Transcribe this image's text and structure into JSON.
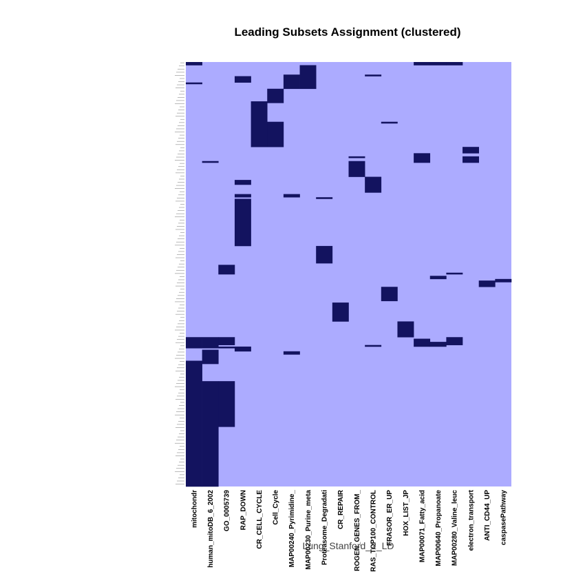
{
  "chart_data": {
    "type": "heatmap",
    "title": "Leading Subsets Assignment (clustered)",
    "xlabel": "Lung_Stanford_2_LD",
    "colors": {
      "background": "#ACABFF",
      "membership": "#13135F"
    },
    "row_count": 270,
    "columns": [
      "mitochondr",
      "human_mitoDB_6_2002",
      "GO_0005739",
      "RAP_DOWN",
      "CR_CELL_CYCLE",
      "Cell_Cycle",
      "MAP00240_Pyrimidine_",
      "MAP00230_Purine_meta",
      "Proteasome_Degradati",
      "CR_REPAIR",
      "ROGEN_GENES_FROM_",
      "RAS_TOP100_CONTROL",
      "FRASOR_ER_UP",
      "HOX_LIST_JP",
      "MAP00071_Fatty_acid",
      "MAP00640_Propanoate",
      "MAP00280_Valine_leuc",
      "electron_transport",
      "ANTI_CD44_UP",
      "caspasePathway"
    ],
    "member_blocks": [
      {
        "col": 0,
        "rows": [
          1,
          2
        ]
      },
      {
        "col": 0,
        "rows": [
          14,
          14
        ]
      },
      {
        "col": 0,
        "rows": [
          176,
          182
        ]
      },
      {
        "col": 0,
        "rows": [
          191,
          270
        ]
      },
      {
        "col": 1,
        "rows": [
          64,
          64
        ]
      },
      {
        "col": 1,
        "rows": [
          176,
          182
        ]
      },
      {
        "col": 1,
        "rows": [
          184,
          192
        ]
      },
      {
        "col": 1,
        "rows": [
          204,
          270
        ]
      },
      {
        "col": 2,
        "rows": [
          130,
          135
        ]
      },
      {
        "col": 2,
        "rows": [
          176,
          180
        ]
      },
      {
        "col": 2,
        "rows": [
          182,
          182
        ]
      },
      {
        "col": 2,
        "rows": [
          204,
          232
        ]
      },
      {
        "col": 3,
        "rows": [
          10,
          13
        ]
      },
      {
        "col": 3,
        "rows": [
          76,
          78
        ]
      },
      {
        "col": 3,
        "rows": [
          85,
          86
        ]
      },
      {
        "col": 3,
        "rows": [
          88,
          117
        ]
      },
      {
        "col": 3,
        "rows": [
          182,
          184
        ]
      },
      {
        "col": 4,
        "rows": [
          26,
          54
        ]
      },
      {
        "col": 5,
        "rows": [
          18,
          26
        ]
      },
      {
        "col": 5,
        "rows": [
          39,
          54
        ]
      },
      {
        "col": 6,
        "rows": [
          9,
          17
        ]
      },
      {
        "col": 6,
        "rows": [
          85,
          86
        ]
      },
      {
        "col": 6,
        "rows": [
          185,
          186
        ]
      },
      {
        "col": 7,
        "rows": [
          3,
          17
        ]
      },
      {
        "col": 8,
        "rows": [
          87,
          87
        ]
      },
      {
        "col": 8,
        "rows": [
          118,
          128
        ]
      },
      {
        "col": 9,
        "rows": [
          154,
          165
        ]
      },
      {
        "col": 10,
        "rows": [
          61,
          61
        ]
      },
      {
        "col": 10,
        "rows": [
          64,
          73
        ]
      },
      {
        "col": 11,
        "rows": [
          9,
          9
        ]
      },
      {
        "col": 11,
        "rows": [
          74,
          83
        ]
      },
      {
        "col": 11,
        "rows": [
          181,
          181
        ]
      },
      {
        "col": 12,
        "rows": [
          39,
          39
        ]
      },
      {
        "col": 12,
        "rows": [
          144,
          152
        ]
      },
      {
        "col": 13,
        "rows": [
          166,
          175
        ]
      },
      {
        "col": 14,
        "rows": [
          1,
          2
        ]
      },
      {
        "col": 14,
        "rows": [
          59,
          64
        ]
      },
      {
        "col": 14,
        "rows": [
          177,
          181
        ]
      },
      {
        "col": 15,
        "rows": [
          1,
          2
        ]
      },
      {
        "col": 15,
        "rows": [
          137,
          138
        ]
      },
      {
        "col": 15,
        "rows": [
          179,
          181
        ]
      },
      {
        "col": 16,
        "rows": [
          1,
          2
        ]
      },
      {
        "col": 16,
        "rows": [
          135,
          135
        ]
      },
      {
        "col": 16,
        "rows": [
          176,
          180
        ]
      },
      {
        "col": 17,
        "rows": [
          55,
          58
        ]
      },
      {
        "col": 17,
        "rows": [
          61,
          64
        ]
      },
      {
        "col": 18,
        "rows": [
          140,
          143
        ]
      },
      {
        "col": 19,
        "rows": [
          139,
          140
        ]
      }
    ]
  }
}
